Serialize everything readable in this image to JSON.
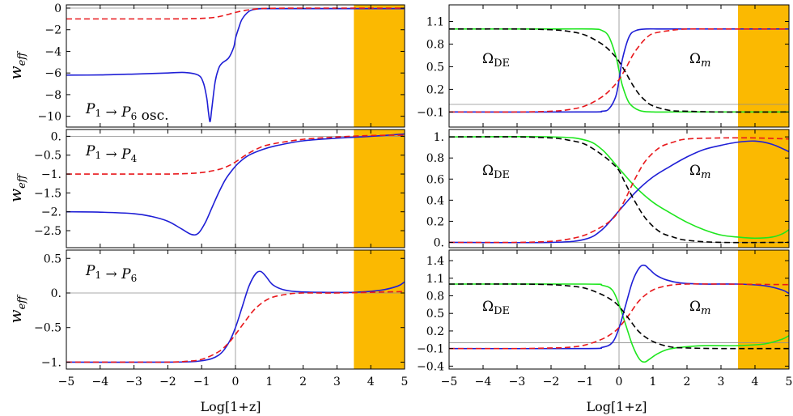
{
  "shared": {
    "xlabel": "Log[1+z]",
    "xlim": [
      -5,
      5
    ],
    "xticks": [
      -5,
      -4,
      -3,
      -2,
      -1,
      0,
      1,
      2,
      3,
      4,
      5
    ],
    "shade_x": [
      3.5,
      5
    ],
    "colors": {
      "blue": "#1f1fd6",
      "red": "#e8181c",
      "green": "#1ee61e",
      "black": "#000000",
      "shade": "#fbb901"
    }
  },
  "chart_data": [
    {
      "type": "line",
      "panel": "left-top",
      "ylabel": "w_eff",
      "ylim": [
        -11,
        0.3
      ],
      "yticks": [
        0,
        -2,
        -4,
        -6,
        -8,
        -10
      ],
      "yticklabels": [
        "0",
        "−2",
        "−4",
        "−6",
        "−8",
        "−10"
      ],
      "annotation": "P1 → P6 osc.",
      "series": [
        {
          "color": "blue",
          "dash": false,
          "x": [
            -5,
            -4,
            -3,
            -2,
            -1.5,
            -1.1,
            -0.95,
            -0.85,
            -0.8,
            -0.75,
            -0.7,
            -0.6,
            -0.5,
            -0.4,
            -0.2,
            -0.05,
            0,
            0.1,
            0.2,
            0.4,
            0.6,
            0.8,
            1,
            2,
            3,
            4,
            5
          ],
          "y": [
            -6.2,
            -6.18,
            -6.1,
            -6.0,
            -5.95,
            -6.2,
            -6.9,
            -8.3,
            -9.6,
            -10.5,
            -9.3,
            -6.8,
            -5.6,
            -5.1,
            -4.6,
            -3.6,
            -2.8,
            -1.8,
            -1.0,
            -0.3,
            -0.1,
            -0.05,
            -0.05,
            -0.05,
            -0.05,
            -0.05,
            -0.05
          ]
        },
        {
          "color": "red",
          "dash": true,
          "x": [
            -5,
            -3,
            -2,
            -1.5,
            -1,
            -0.6,
            -0.3,
            0,
            0.3,
            0.6,
            1,
            2,
            3,
            5
          ],
          "y": [
            -1,
            -1,
            -1,
            -0.99,
            -0.95,
            -0.85,
            -0.65,
            -0.4,
            -0.2,
            -0.08,
            -0.02,
            0,
            0,
            0
          ]
        }
      ]
    },
    {
      "type": "line",
      "panel": "right-top",
      "ylim": [
        -0.3,
        1.32
      ],
      "yticks": [
        1.1,
        0.8,
        0.5,
        0.2,
        -0.1
      ],
      "yticklabels": [
        "1.1",
        "0.8",
        "0.5",
        "0.2",
        "−0.1"
      ],
      "annotations": [
        "ΩDE",
        "Ωm"
      ],
      "series": [
        {
          "color": "green",
          "dash": false,
          "x": [
            -5,
            -2,
            -0.8,
            -0.5,
            -0.3,
            -0.1,
            0,
            0.1,
            0.3,
            0.6,
            1,
            1.5,
            2,
            5
          ],
          "y": [
            1.0,
            1.0,
            1.0,
            0.98,
            0.9,
            0.65,
            0.45,
            0.25,
            0.02,
            -0.08,
            -0.1,
            -0.1,
            -0.1,
            -0.1
          ]
        },
        {
          "color": "blue",
          "dash": false,
          "x": [
            -5,
            -1,
            -0.5,
            -0.3,
            -0.1,
            0,
            0.1,
            0.3,
            0.5,
            0.8,
            1.2,
            2,
            5
          ],
          "y": [
            -0.1,
            -0.1,
            -0.09,
            -0.06,
            0.1,
            0.32,
            0.6,
            0.9,
            0.98,
            1.0,
            1.0,
            1.0,
            1.0
          ]
        },
        {
          "color": "red",
          "dash": true,
          "x": [
            -5,
            -3,
            -2,
            -1.5,
            -1,
            -0.5,
            -0.2,
            0,
            0.2,
            0.4,
            0.6,
            0.8,
            1,
            1.5,
            2,
            3,
            5
          ],
          "y": [
            -0.1,
            -0.1,
            -0.09,
            -0.07,
            -0.02,
            0.1,
            0.22,
            0.33,
            0.48,
            0.65,
            0.78,
            0.88,
            0.94,
            0.98,
            1.0,
            1.0,
            1.0
          ]
        },
        {
          "color": "black",
          "dash": true,
          "x": [
            -5,
            -3,
            -2,
            -1.5,
            -1,
            -0.5,
            -0.2,
            0,
            0.2,
            0.4,
            0.6,
            0.8,
            1,
            1.5,
            2,
            3,
            5
          ],
          "y": [
            1.0,
            1.0,
            0.99,
            0.97,
            0.92,
            0.8,
            0.68,
            0.57,
            0.42,
            0.26,
            0.13,
            0.04,
            -0.02,
            -0.08,
            -0.09,
            -0.1,
            -0.1
          ]
        }
      ]
    },
    {
      "type": "line",
      "panel": "left-middle",
      "ylabel": "w_eff",
      "ylim": [
        -2.95,
        0.18
      ],
      "yticks": [
        0,
        -0.5,
        -1,
        -1.5,
        -2,
        -2.5
      ],
      "yticklabels": [
        "0.",
        "−0.5",
        "−1.",
        "−1.5",
        "−2.",
        "−2.5"
      ],
      "annotation": "P1 → P4",
      "series": [
        {
          "color": "blue",
          "dash": false,
          "x": [
            -5,
            -4,
            -3,
            -2.5,
            -2,
            -1.6,
            -1.3,
            -1.1,
            -0.9,
            -0.7,
            -0.5,
            -0.3,
            -0.1,
            0.1,
            0.4,
            0.8,
            1.2,
            2,
            3,
            4,
            5
          ],
          "y": [
            -2.0,
            -2.01,
            -2.05,
            -2.12,
            -2.25,
            -2.45,
            -2.6,
            -2.57,
            -2.3,
            -1.9,
            -1.5,
            -1.15,
            -0.9,
            -0.7,
            -0.5,
            -0.35,
            -0.25,
            -0.12,
            -0.05,
            0.0,
            0.06
          ]
        },
        {
          "color": "red",
          "dash": true,
          "x": [
            -5,
            -3,
            -2,
            -1.5,
            -1,
            -0.5,
            -0.2,
            0,
            0.3,
            0.6,
            1,
            2,
            3,
            4,
            5
          ],
          "y": [
            -1,
            -1,
            -1,
            -0.99,
            -0.96,
            -0.88,
            -0.78,
            -0.68,
            -0.5,
            -0.35,
            -0.22,
            -0.08,
            -0.02,
            0.02,
            0.03
          ]
        }
      ]
    },
    {
      "type": "line",
      "panel": "right-middle",
      "ylim": [
        -0.05,
        1.07
      ],
      "yticks": [
        1.0,
        0.8,
        0.6,
        0.4,
        0.2,
        0.0
      ],
      "yticklabels": [
        "1.",
        "0.8",
        "0.6",
        "0.4",
        "0.2",
        "0."
      ],
      "annotations": [
        "ΩDE",
        "Ωm"
      ],
      "series": [
        {
          "color": "green",
          "dash": false,
          "x": [
            -5,
            -2,
            -1,
            -0.5,
            0,
            0.5,
            1,
            1.5,
            2,
            2.5,
            3,
            3.5,
            4,
            4.5,
            4.8,
            5
          ],
          "y": [
            1.0,
            1.0,
            0.97,
            0.88,
            0.7,
            0.52,
            0.38,
            0.28,
            0.19,
            0.12,
            0.07,
            0.05,
            0.04,
            0.05,
            0.08,
            0.12
          ]
        },
        {
          "color": "blue",
          "dash": false,
          "x": [
            -5,
            -2,
            -1,
            -0.5,
            0,
            0.5,
            1,
            1.5,
            2,
            2.5,
            3,
            3.5,
            4,
            4.5,
            5
          ],
          "y": [
            0,
            0,
            0.03,
            0.12,
            0.3,
            0.48,
            0.62,
            0.72,
            0.81,
            0.88,
            0.92,
            0.95,
            0.96,
            0.93,
            0.86
          ]
        },
        {
          "color": "red",
          "dash": true,
          "x": [
            -5,
            -3,
            -2,
            -1.5,
            -1,
            -0.5,
            -0.2,
            0,
            0.2,
            0.5,
            0.8,
            1.2,
            1.6,
            2,
            3,
            4,
            5
          ],
          "y": [
            0,
            0,
            0.01,
            0.03,
            0.07,
            0.15,
            0.22,
            0.3,
            0.42,
            0.62,
            0.78,
            0.9,
            0.95,
            0.98,
            0.99,
            0.99,
            0.98
          ]
        },
        {
          "color": "black",
          "dash": true,
          "x": [
            -5,
            -3,
            -2,
            -1.5,
            -1,
            -0.5,
            -0.2,
            0,
            0.2,
            0.5,
            0.8,
            1.2,
            1.6,
            2,
            3,
            5
          ],
          "y": [
            1,
            1,
            0.99,
            0.97,
            0.93,
            0.83,
            0.75,
            0.68,
            0.55,
            0.37,
            0.22,
            0.1,
            0.05,
            0.02,
            0,
            0
          ]
        }
      ]
    },
    {
      "type": "line",
      "panel": "left-bottom",
      "ylabel": "w_eff",
      "ylim": [
        -1.1,
        0.62
      ],
      "yticks": [
        0.5,
        0,
        -0.5,
        -1
      ],
      "yticklabels": [
        "0.5",
        "0.",
        "−0.5",
        "−1."
      ],
      "annotation": "P1 → P6",
      "series": [
        {
          "color": "blue",
          "dash": false,
          "x": [
            -5,
            -2,
            -1,
            -0.5,
            -0.2,
            0,
            0.2,
            0.4,
            0.6,
            0.75,
            0.9,
            1.1,
            1.4,
            1.8,
            2.5,
            3.5,
            4.3,
            4.8,
            5
          ],
          "y": [
            -1,
            -1,
            -0.98,
            -0.9,
            -0.72,
            -0.5,
            -0.2,
            0.1,
            0.28,
            0.31,
            0.24,
            0.12,
            0.05,
            0.02,
            0.01,
            0.01,
            0.04,
            0.1,
            0.16
          ]
        },
        {
          "color": "red",
          "dash": true,
          "x": [
            -5,
            -3,
            -2,
            -1.5,
            -1,
            -0.5,
            -0.2,
            0,
            0.3,
            0.6,
            1,
            1.5,
            2,
            3,
            5
          ],
          "y": [
            -1,
            -1,
            -1,
            -0.99,
            -0.96,
            -0.85,
            -0.72,
            -0.6,
            -0.4,
            -0.22,
            -0.08,
            -0.02,
            0,
            0,
            0.02
          ]
        }
      ]
    },
    {
      "type": "line",
      "panel": "right-bottom",
      "ylim": [
        -0.45,
        1.58
      ],
      "yticks": [
        1.4,
        1.1,
        0.8,
        0.5,
        0.2,
        -0.1,
        -0.4
      ],
      "yticklabels": [
        "1.4",
        "1.1",
        "0.8",
        "0.5",
        "0.2",
        "−0.1",
        "−0.4"
      ],
      "annotations": [
        "ΩDE",
        "Ωm"
      ],
      "series": [
        {
          "color": "green",
          "dash": false,
          "x": [
            -5,
            -1,
            -0.5,
            -0.2,
            0,
            0.2,
            0.4,
            0.6,
            0.75,
            0.9,
            1.1,
            1.4,
            1.8,
            2.5,
            3.5,
            4.3,
            4.8,
            5
          ],
          "y": [
            1,
            1,
            0.98,
            0.9,
            0.65,
            0.3,
            -0.05,
            -0.28,
            -0.33,
            -0.28,
            -0.2,
            -0.12,
            -0.08,
            -0.05,
            -0.05,
            -0.02,
            0.06,
            0.12
          ]
        },
        {
          "color": "blue",
          "dash": false,
          "x": [
            -5,
            -1,
            -0.5,
            -0.2,
            0,
            0.2,
            0.4,
            0.6,
            0.75,
            0.9,
            1.1,
            1.4,
            1.8,
            2.5,
            3.5,
            4.3,
            4.8,
            5
          ],
          "y": [
            -0.1,
            -0.1,
            -0.08,
            0,
            0.25,
            0.65,
            1.05,
            1.28,
            1.32,
            1.25,
            1.15,
            1.07,
            1.02,
            1.0,
            1.0,
            0.97,
            0.9,
            0.84
          ]
        },
        {
          "color": "red",
          "dash": true,
          "x": [
            -5,
            -3,
            -2,
            -1.5,
            -1,
            -0.5,
            -0.2,
            0,
            0.3,
            0.6,
            1,
            1.5,
            2,
            3,
            5
          ],
          "y": [
            -0.1,
            -0.1,
            -0.09,
            -0.08,
            -0.04,
            0.06,
            0.16,
            0.26,
            0.48,
            0.72,
            0.9,
            0.98,
            1.0,
            1.0,
            0.99
          ]
        },
        {
          "color": "black",
          "dash": true,
          "x": [
            -5,
            -3,
            -2,
            -1.5,
            -1,
            -0.5,
            -0.2,
            0,
            0.3,
            0.6,
            1,
            1.5,
            2,
            3,
            5
          ],
          "y": [
            1,
            1,
            0.99,
            0.97,
            0.93,
            0.82,
            0.72,
            0.62,
            0.4,
            0.18,
            0.02,
            -0.07,
            -0.09,
            -0.1,
            -0.1
          ]
        }
      ]
    }
  ]
}
